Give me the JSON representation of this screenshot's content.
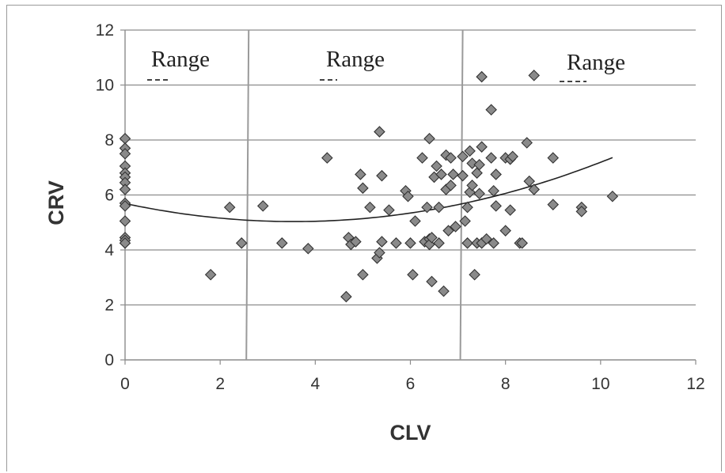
{
  "chart_data": {
    "type": "scatter",
    "xlabel": "CLV",
    "ylabel": "CRV",
    "xlim": [
      0,
      12
    ],
    "ylim": [
      0,
      12
    ],
    "xticks": [
      "0",
      "2",
      "4",
      "6",
      "8",
      "10",
      "12"
    ],
    "yticks": [
      "0",
      "2",
      "4",
      "6",
      "8",
      "10",
      "12"
    ],
    "grid": "horizontal",
    "range_labels": [
      "Range",
      "Range",
      "Range"
    ],
    "range_dividers": [
      {
        "x_top": 2.6,
        "x_bottom": 2.55
      },
      {
        "x_top": 7.1,
        "x_bottom": 7.05
      }
    ],
    "trendline": {
      "type": "polynomial",
      "coefficients": [
        5.69,
        -0.37,
        0.052
      ]
    },
    "points": [
      [
        0,
        8.05
      ],
      [
        0,
        7.7
      ],
      [
        0,
        7.5
      ],
      [
        0,
        7.05
      ],
      [
        0,
        6.8
      ],
      [
        0,
        6.65
      ],
      [
        0,
        6.45
      ],
      [
        0,
        6.2
      ],
      [
        0,
        5.7
      ],
      [
        0,
        5.6
      ],
      [
        0,
        5.05
      ],
      [
        0,
        4.45
      ],
      [
        0,
        4.35
      ],
      [
        0,
        4.25
      ],
      [
        1.8,
        3.1
      ],
      [
        2.2,
        5.55
      ],
      [
        2.45,
        4.25
      ],
      [
        2.9,
        5.6
      ],
      [
        3.3,
        4.25
      ],
      [
        3.85,
        4.05
      ],
      [
        4.25,
        7.35
      ],
      [
        4.65,
        2.3
      ],
      [
        4.7,
        4.45
      ],
      [
        4.75,
        4.2
      ],
      [
        4.85,
        4.3
      ],
      [
        4.95,
        6.75
      ],
      [
        5.0,
        6.25
      ],
      [
        5.0,
        3.1
      ],
      [
        5.15,
        5.55
      ],
      [
        5.3,
        3.7
      ],
      [
        5.35,
        3.9
      ],
      [
        5.35,
        8.3
      ],
      [
        5.4,
        6.7
      ],
      [
        5.4,
        4.3
      ],
      [
        5.55,
        5.45
      ],
      [
        5.7,
        4.25
      ],
      [
        5.9,
        6.15
      ],
      [
        5.95,
        5.95
      ],
      [
        6.0,
        4.25
      ],
      [
        6.05,
        3.1
      ],
      [
        6.1,
        5.05
      ],
      [
        6.25,
        7.35
      ],
      [
        6.3,
        4.3
      ],
      [
        6.35,
        5.55
      ],
      [
        6.4,
        4.4
      ],
      [
        6.4,
        4.2
      ],
      [
        6.45,
        2.85
      ],
      [
        6.45,
        4.45
      ],
      [
        6.4,
        8.05
      ],
      [
        6.5,
        6.65
      ],
      [
        6.55,
        7.05
      ],
      [
        6.6,
        5.55
      ],
      [
        6.6,
        4.25
      ],
      [
        6.65,
        6.75
      ],
      [
        6.7,
        2.5
      ],
      [
        6.75,
        7.45
      ],
      [
        6.75,
        6.2
      ],
      [
        6.8,
        4.7
      ],
      [
        6.85,
        7.35
      ],
      [
        6.85,
        6.35
      ],
      [
        6.9,
        6.75
      ],
      [
        6.95,
        4.85
      ],
      [
        7.1,
        7.4
      ],
      [
        7.1,
        6.7
      ],
      [
        7.15,
        5.05
      ],
      [
        7.2,
        4.25
      ],
      [
        7.2,
        5.55
      ],
      [
        7.25,
        6.1
      ],
      [
        7.25,
        7.6
      ],
      [
        7.3,
        7.15
      ],
      [
        7.3,
        6.35
      ],
      [
        7.35,
        3.1
      ],
      [
        7.4,
        6.8
      ],
      [
        7.4,
        4.25
      ],
      [
        7.45,
        7.1
      ],
      [
        7.45,
        6.05
      ],
      [
        7.5,
        7.75
      ],
      [
        7.5,
        4.25
      ],
      [
        7.5,
        10.3
      ],
      [
        7.6,
        4.4
      ],
      [
        7.7,
        7.35
      ],
      [
        7.7,
        9.1
      ],
      [
        7.75,
        6.15
      ],
      [
        7.75,
        4.25
      ],
      [
        7.8,
        6.75
      ],
      [
        7.8,
        5.6
      ],
      [
        8.0,
        4.7
      ],
      [
        8.0,
        7.35
      ],
      [
        8.1,
        5.45
      ],
      [
        8.1,
        7.3
      ],
      [
        8.15,
        7.4
      ],
      [
        8.3,
        4.25
      ],
      [
        8.35,
        4.25
      ],
      [
        8.45,
        7.9
      ],
      [
        8.5,
        6.5
      ],
      [
        8.6,
        6.2
      ],
      [
        8.6,
        10.35
      ],
      [
        9.0,
        7.35
      ],
      [
        9.0,
        5.65
      ],
      [
        9.6,
        5.55
      ],
      [
        9.6,
        5.4
      ],
      [
        10.25,
        5.95
      ]
    ]
  }
}
